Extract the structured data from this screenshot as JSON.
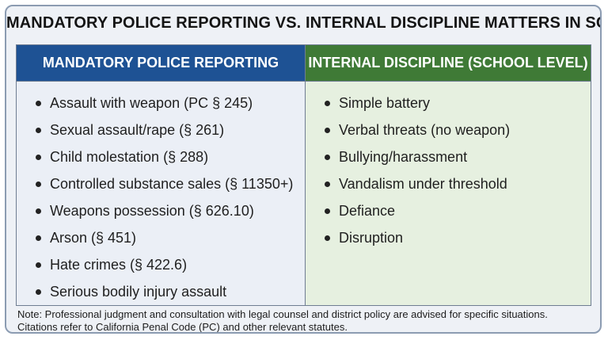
{
  "title": "MANDATORY POLICE REPORTING VS. INTERNAL DISCIPLINE MATTERS IN SCHOOLS",
  "columns": [
    {
      "header": "MANDATORY POLICE REPORTING",
      "header_color": "#1e5294",
      "body_color": "#ebeff6",
      "items": [
        "Assault with weapon (PC § 245)",
        "Sexual assault/rape (§ 261)",
        "Child molestation (§ 288)",
        "Controlled substance sales (§ 11350+)",
        "Weapons possession (§ 626.10)",
        "Arson (§ 451)",
        "Hate crimes (§ 422.6)",
        "Serious bodily injury assault"
      ]
    },
    {
      "header": "INTERNAL DISCIPLINE (SCHOOL LEVEL)",
      "header_color": "#3f7a36",
      "body_color": "#e6f0e0",
      "items": [
        "Simple battery",
        "Verbal threats (no weapon)",
        "Bullying/harassment",
        "Vandalism under threshold",
        "Defiance",
        "Disruption"
      ]
    }
  ],
  "note": {
    "line1": "Note: Professional judgment and consultation with legal counsel and district policy are advised for specific situations.",
    "line2": "Citations refer to California Penal Code (PC) and other relevant statutes."
  }
}
